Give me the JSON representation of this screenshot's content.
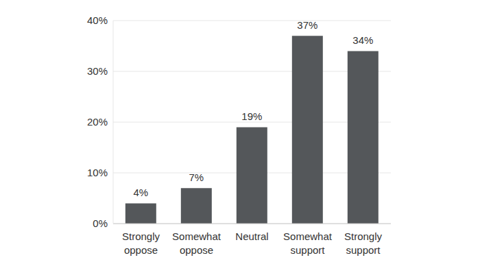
{
  "chart_data": {
    "type": "bar",
    "categories": [
      "Strongly oppose",
      "Somewhat oppose",
      "Neutral",
      "Somewhat support",
      "Strongly support"
    ],
    "values": [
      4,
      7,
      19,
      37,
      34
    ],
    "value_labels": [
      "4%",
      "7%",
      "19%",
      "37%",
      "34%"
    ],
    "data_labels": true,
    "color": "#54575a",
    "ylim": [
      0,
      40
    ],
    "yticks": [
      {
        "value": 0,
        "label": "0%"
      },
      {
        "value": 10,
        "label": "10%"
      },
      {
        "value": 20,
        "label": "20%"
      },
      {
        "value": 30,
        "label": "30%"
      },
      {
        "value": 40,
        "label": "40%"
      }
    ],
    "grid": true
  }
}
